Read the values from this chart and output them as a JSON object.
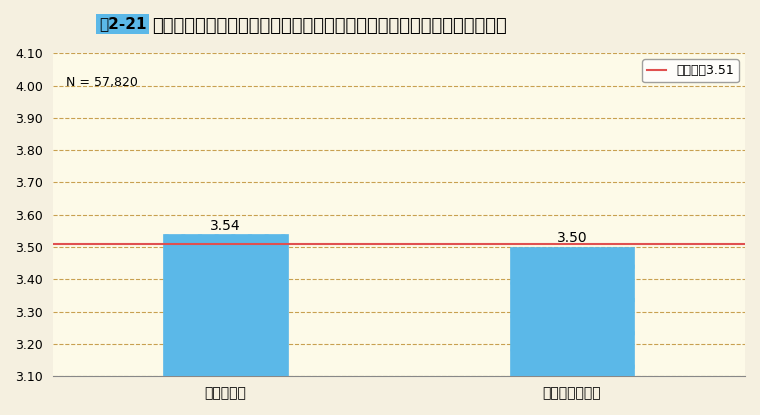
{
  "title": "フルタイム勤務職員のうち、交替制勤務・交替制勤務以外の回答の平均値",
  "fig_label": "図2-21",
  "categories": [
    "交替制勤務",
    "交替制勤務以外"
  ],
  "values": [
    3.54,
    3.5
  ],
  "bar_color": "#5BB8E8",
  "bar_hatch": ".",
  "ylim": [
    3.1,
    4.1
  ],
  "yticks": [
    3.1,
    3.2,
    3.3,
    3.4,
    3.5,
    3.6,
    3.7,
    3.8,
    3.9,
    4.0,
    4.1
  ],
  "mean_line_value": 3.51,
  "mean_line_color": "#E05050",
  "mean_line_label": "総平均値3.51",
  "n_label": "N = 57,820",
  "background_color": "#FDFAE8",
  "grid_color": "#C8A050",
  "value_label_fontsize": 10,
  "axis_label_fontsize": 10,
  "title_fontsize": 13
}
